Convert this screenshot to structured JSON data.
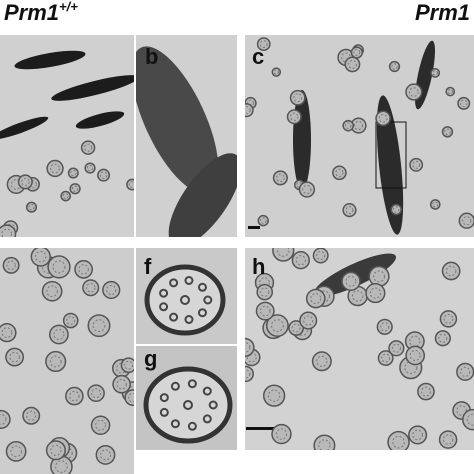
{
  "header": {
    "left_label": "Prm1",
    "left_superscript": "+/+",
    "right_label": "Prm1"
  },
  "panel_labels": [
    "b",
    "c",
    "f",
    "g",
    "h"
  ]
}
